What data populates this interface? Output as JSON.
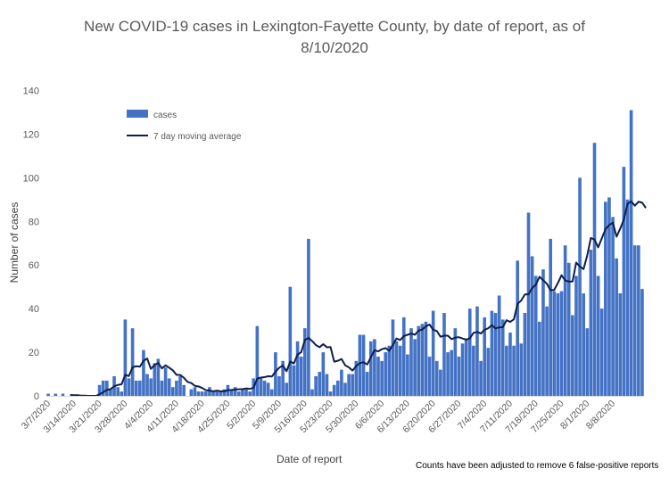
{
  "chart_data": {
    "type": "bar",
    "title": "New COVID-19 cases in Lexington-Fayette County, by date of report, as of 8/10/2020",
    "xlabel": "Date of report",
    "ylabel": "Number of cases",
    "ylim": [
      0,
      140
    ],
    "yticks": [
      "0",
      "20",
      "40",
      "60",
      "80",
      "100",
      "120",
      "140"
    ],
    "xtick_labels": [
      "3/7/2020",
      "3/14/2020",
      "3/21/2020",
      "3/28/2020",
      "4/4/2020",
      "4/11/2020",
      "4/18/2020",
      "4/25/2020",
      "5/2/2020",
      "5/9/2020",
      "5/16/2020",
      "5/23/2020",
      "5/30/2020",
      "6/6/2020",
      "6/13/2020",
      "6/20/2020",
      "6/27/2020",
      "7/4/2020",
      "7/11/2020",
      "7/18/2020",
      "7/25/2020",
      "8/1/2020",
      "8/8/2020"
    ],
    "legend": {
      "position": "top-left",
      "items": [
        "cases",
        "7 day moving average"
      ]
    },
    "footnote": "Counts have been adjusted to remove 6 false-positive reports",
    "grid": false,
    "colors": {
      "bar": "#4472c4",
      "line": "#0e1f4d",
      "text": "#595959"
    },
    "series": [
      {
        "name": "cases",
        "type": "bar",
        "start_date": "3/7/2020",
        "values": [
          1,
          0,
          1,
          0,
          1,
          0,
          0,
          0,
          0,
          0,
          0,
          0,
          0,
          0,
          5,
          7,
          7,
          3,
          9,
          4,
          2,
          35,
          8,
          31,
          7,
          7,
          21,
          10,
          8,
          15,
          17,
          7,
          13,
          8,
          4,
          7,
          9,
          5,
          0,
          3,
          4,
          2,
          2,
          2,
          4,
          2,
          2,
          2,
          3,
          5,
          3,
          4,
          2,
          3,
          3,
          2,
          8,
          32,
          8,
          7,
          6,
          3,
          20,
          9,
          16,
          6,
          50,
          14,
          25,
          18,
          31,
          72,
          3,
          9,
          11,
          20,
          10,
          2,
          5,
          7,
          12,
          6,
          10,
          10,
          16,
          28,
          28,
          11,
          25,
          26,
          18,
          16,
          20,
          23,
          35,
          25,
          23,
          36,
          19,
          31,
          26,
          32,
          33,
          34,
          18,
          39,
          16,
          12,
          38,
          20,
          21,
          31,
          18,
          24,
          26,
          40,
          23,
          41,
          16,
          36,
          22,
          39,
          38,
          46,
          35,
          23,
          29,
          23,
          62,
          24,
          38,
          84,
          64,
          55,
          34,
          58,
          41,
          72,
          48,
          47,
          48,
          69,
          61,
          37,
          55,
          100,
          47,
          31,
          67,
          116,
          55,
          40,
          89,
          91,
          82,
          63,
          47,
          105,
          90,
          131,
          69,
          69,
          49
        ]
      },
      {
        "name": "7 day moving average",
        "type": "line",
        "start_date": "3/7/2020",
        "values": [
          null,
          null,
          null,
          null,
          null,
          null,
          0.4,
          0.3,
          0.3,
          0.1,
          0.1,
          0,
          0,
          0,
          0.7,
          1.7,
          2.7,
          3.1,
          4.4,
          5.0,
          5.3,
          9.6,
          9.1,
          13.1,
          13.6,
          13.4,
          16.1,
          17.1,
          12.4,
          14.1,
          15.1,
          12.6,
          14.0,
          12.9,
          11.7,
          9.6,
          9.6,
          8.3,
          6.4,
          5.9,
          4.6,
          4.3,
          3.6,
          2.6,
          2.4,
          2.1,
          2.4,
          2.1,
          2.1,
          2.6,
          2.7,
          2.9,
          3.0,
          3.1,
          3.4,
          3.2,
          3.7,
          7.9,
          8.4,
          8.6,
          9.0,
          8.9,
          11.1,
          12.9,
          13.9,
          11.3,
          15.7,
          14.9,
          18.9,
          20.0,
          25.6,
          26.6,
          25.1,
          23.3,
          22.3,
          23.7,
          22.3,
          22.4,
          15.7,
          16.1,
          16.9,
          14.0,
          13.1,
          11.6,
          13.7,
          15.0,
          15.4,
          14.4,
          17.7,
          20.9,
          20.4,
          21.4,
          21.9,
          20.7,
          23.3,
          26.3,
          25.6,
          27.4,
          28.0,
          28.6,
          28.0,
          29.9,
          30.4,
          31.9,
          32.7,
          30.3,
          29.7,
          27.1,
          27.6,
          27.6,
          26.0,
          26.7,
          26.9,
          26.3,
          25.8,
          26.4,
          28.9,
          29.3,
          28.6,
          30.3,
          31.0,
          32.4,
          30.9,
          31.4,
          31.5,
          34.7,
          33.9,
          35.1,
          42.2,
          43.7,
          46.5,
          46.6,
          49.4,
          51.0,
          54.6,
          53.0,
          51.4,
          48.4,
          48.6,
          51.7,
          55.3,
          52.9,
          52.4,
          52.4,
          61.1,
          59.3,
          58.1,
          64.3,
          72.4,
          71.6,
          68.1,
          72.3,
          76.4,
          78.3,
          79.4,
          73.0,
          76.6,
          80.9,
          88.0,
          89.2,
          87.2,
          89.0,
          88.6,
          86.1
        ]
      }
    ]
  }
}
